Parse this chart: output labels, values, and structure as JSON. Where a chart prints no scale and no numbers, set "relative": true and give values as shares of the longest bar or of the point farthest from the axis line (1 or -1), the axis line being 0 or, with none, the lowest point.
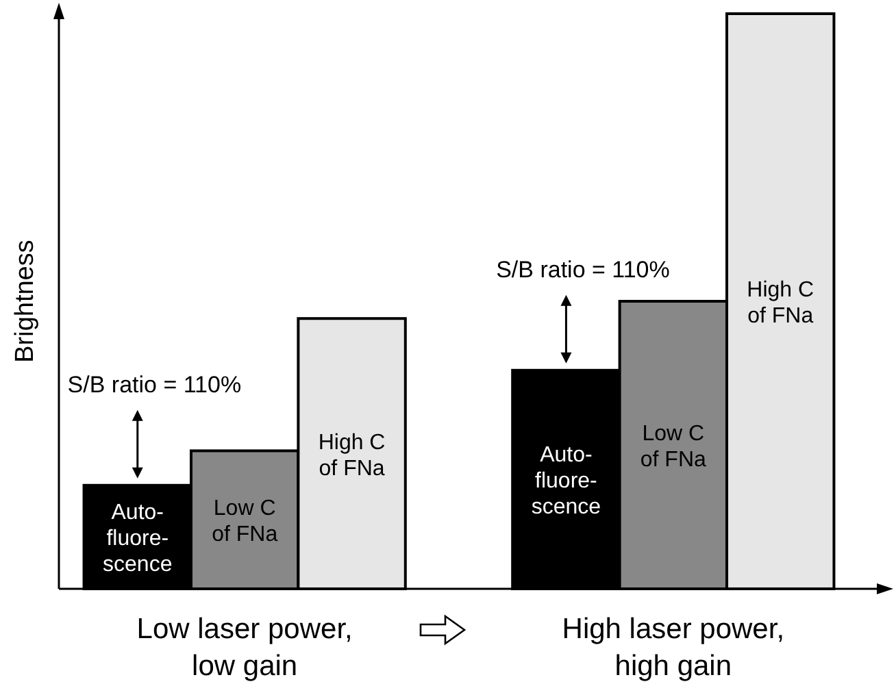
{
  "chart_data": {
    "type": "bar",
    "relative": true,
    "ylabel": "Brightness",
    "categories": [
      "Low laser power,\nlow gain",
      "High laser power,\nhigh gain"
    ],
    "series": [
      {
        "name": "Auto-\nfluore-\nscence",
        "color": "#000000",
        "values": [
          0.18,
          0.38
        ]
      },
      {
        "name": "Low C\nof FNa",
        "color": "#888888",
        "values": [
          0.24,
          0.5
        ]
      },
      {
        "name": "High C\nof FNa",
        "color": "#e6e6e6",
        "values": [
          0.47,
          1
        ]
      }
    ],
    "annotations": [
      "S/B ratio = 110%",
      "S/B ratio = 110%"
    ]
  }
}
